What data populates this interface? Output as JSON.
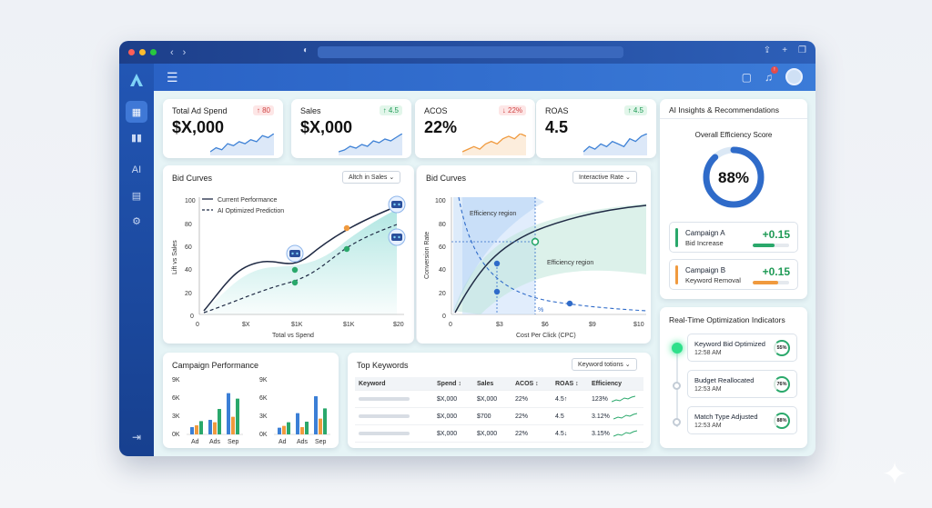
{
  "kpis": [
    {
      "title": "Total Ad Spend",
      "value": "$X,000",
      "badge": "↑ 80",
      "trend": "up",
      "badge_color": "red",
      "spark": [
        10,
        12,
        11,
        14,
        13,
        15,
        14,
        16,
        15,
        18,
        17,
        19
      ],
      "spark_color": "#3f82d6"
    },
    {
      "title": "Sales",
      "value": "$X,000",
      "badge": "↑ 4.5",
      "trend": "up",
      "badge_color": "green",
      "spark": [
        10,
        11,
        13,
        12,
        14,
        13,
        16,
        15,
        17,
        16,
        18,
        20
      ],
      "spark_color": "#3f82d6"
    },
    {
      "title": "ACOS",
      "value": "22%",
      "badge": "↓ 22%",
      "trend": "down",
      "badge_color": "red",
      "spark": [
        8,
        9,
        10,
        9,
        11,
        12,
        11,
        13,
        14,
        13,
        15,
        14
      ],
      "spark_color": "#f09a3e"
    },
    {
      "title": "ROAS",
      "value": "4.5",
      "badge": "↑ 4.5",
      "trend": "up",
      "badge_color": "green",
      "spark": [
        10,
        12,
        11,
        13,
        12,
        14,
        13,
        12,
        15,
        14,
        16,
        17
      ],
      "spark_color": "#3f82d6"
    }
  ],
  "bid_curves_1": {
    "title": "Bid Curves",
    "dropdown": "Altch in Sales",
    "legend": [
      "Current Performance",
      "AI Optimized Prediction"
    ],
    "ylabel": "Lift vs Sales",
    "xlabel": "Total vs Spend",
    "yticks": [
      "100",
      "80",
      "60",
      "40",
      "20",
      "0"
    ],
    "xticks": [
      "0",
      "$X",
      "$1K",
      "$1K",
      "$20"
    ]
  },
  "bid_curves_2": {
    "title": "Bid Curves",
    "dropdown": "Interactive Rate",
    "ylabel": "Conversion Rate",
    "xlabel": "Cost Per Click (CPC)",
    "yticks": [
      "100",
      "80",
      "60",
      "40",
      "20",
      "0"
    ],
    "xticks": [
      "0",
      "$3",
      "$6",
      "$9",
      "$10"
    ],
    "region1": "Efficiency region",
    "region2": "Efficiency region",
    "marker": "%"
  },
  "campaign": {
    "title": "Campaign Performance",
    "chart_data": [
      {
        "type": "bar",
        "categories": [
          "Ad",
          "Ads",
          "Sep"
        ],
        "yticks": [
          "9K",
          "6K",
          "3K",
          "0K"
        ],
        "ylim": [
          0,
          9
        ],
        "series": [
          {
            "color": "#3b7fd6",
            "values": [
              1.2,
              2.4,
              6.8
            ]
          },
          {
            "color": "#f09a3e",
            "values": [
              1.5,
              2.0,
              2.9
            ]
          },
          {
            "color": "#2aa86b",
            "values": [
              2.2,
              4.2,
              5.9
            ]
          }
        ]
      },
      {
        "type": "bar",
        "categories": [
          "Ad",
          "Ads",
          "Sep"
        ],
        "yticks": [
          "9K",
          "6K",
          "3K",
          "0K"
        ],
        "ylim": [
          0,
          9
        ],
        "series": [
          {
            "color": "#3b7fd6",
            "values": [
              1.1,
              3.5,
              6.3
            ]
          },
          {
            "color": "#f09a3e",
            "values": [
              1.4,
              1.2,
              2.6
            ]
          },
          {
            "color": "#2aa86b",
            "values": [
              2.0,
              2.1,
              4.3
            ]
          }
        ]
      }
    ]
  },
  "keywords": {
    "title": "Top Keywords",
    "dropdown": "Keyword totions",
    "headers": [
      "Keyword",
      "Spend ↕",
      "Sales",
      "ACOS ↕",
      "ROAS ↕",
      "Efficiency"
    ],
    "rows": [
      {
        "spend": "$X,000",
        "sales": "$X,000",
        "acos": "22%",
        "roas": "4.5↑",
        "eff": "123%"
      },
      {
        "spend": "$X,000",
        "sales": "$700",
        "acos": "22%",
        "roas": "4.5",
        "eff": "3.12%"
      },
      {
        "spend": "$X,000",
        "sales": "$X,000",
        "acos": "22%",
        "roas": "4.5↓",
        "eff": "3.15%"
      }
    ]
  },
  "insights": {
    "title": "AI Insights & Recommendations",
    "score_label": "Overall Efficiency Score",
    "score": "88%",
    "score_value": 88,
    "items": [
      {
        "name": "Campaign A",
        "action": "Bid Increase",
        "value": "+0.15",
        "color": "#2aa86b",
        "progress": 0.6
      },
      {
        "name": "Campaign B",
        "action": "Keyword Removal",
        "value": "+0.15",
        "color": "#f09a3e",
        "progress": 0.7
      }
    ]
  },
  "realtime": {
    "title": "Real-Time Optimization Indicators",
    "items": [
      {
        "title": "Keyword Bid Optimized",
        "time": "12:58 AM",
        "pct": "55%"
      },
      {
        "title": "Budget Reallocated",
        "time": "12:53 AM",
        "pct": "76%"
      },
      {
        "title": "Match Type Adjusted",
        "time": "12:53 AM",
        "pct": "88%"
      }
    ]
  }
}
